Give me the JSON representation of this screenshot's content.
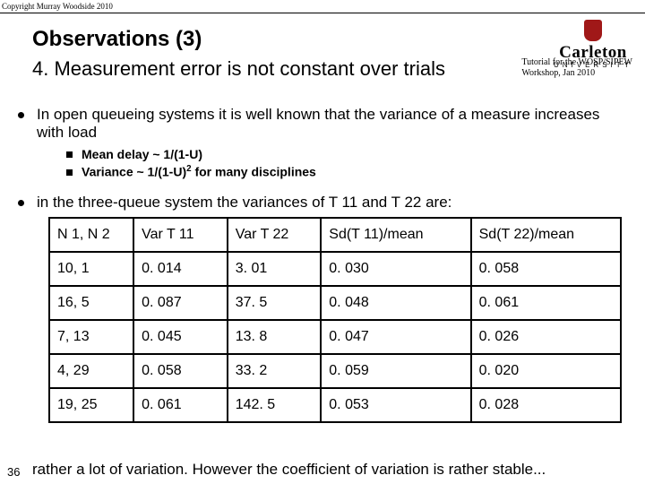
{
  "copyright": "Copyright Murray Woodside 2010",
  "logo": {
    "wordmark": "Carleton",
    "sub": "UNIVERSITY"
  },
  "heading": {
    "title": "Observations (3)",
    "subtitle": "4. Measurement error is not constant over trials"
  },
  "tutorial": {
    "line1": "Tutorial for the WOSP/SIPEW",
    "line2": "Workshop, Jan 2010"
  },
  "bullet1": "In open queueing systems it is well known that the variance of a measure increases with load",
  "sub1": "Mean delay ~ 1/(1-U)",
  "sub2_pre": "Variance ~ 1/(1-U)",
  "sub2_sup": "2",
  "sub2_post": "  for many disciplines",
  "bullet2": "in the three-queue system the variances of T 11 and T 22 are:",
  "table": {
    "columns": [
      "N 1, N 2",
      "Var T 11",
      "Var T 22",
      "Sd(T 11)/mean",
      "Sd(T 22)/mean"
    ],
    "rows": [
      [
        "10, 1",
        "0. 014",
        "3. 01",
        "0. 030",
        "0. 058"
      ],
      [
        "16, 5",
        "0. 087",
        "37. 5",
        "0. 048",
        "0. 061"
      ],
      [
        "7, 13",
        "0. 045",
        "13. 8",
        "0. 047",
        "0. 026"
      ],
      [
        "4, 29",
        "0. 058",
        "33. 2",
        "0. 059",
        "0. 020"
      ],
      [
        "19, 25",
        "0. 061",
        "142. 5",
        "0. 053",
        "0. 028"
      ]
    ],
    "col_widths": [
      "90px",
      "100px",
      "100px",
      "160px",
      "160px"
    ]
  },
  "footer": "rather a lot of variation. However the coefficient of variation is rather stable...",
  "page": "36"
}
